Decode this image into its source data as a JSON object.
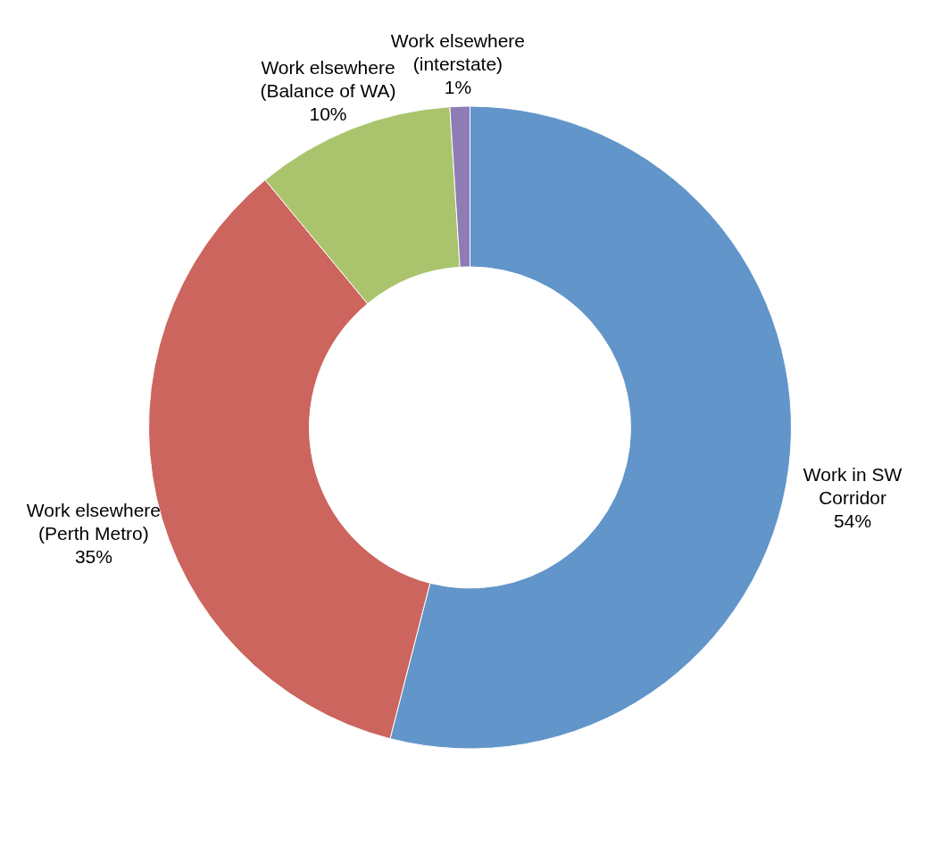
{
  "chart_data": {
    "type": "donut",
    "categories": [
      "Work in SW Corridor",
      "Work elsewhere (Perth Metro)",
      "Work elsewhere (Balance of WA)",
      "Work elsewhere (interstate)"
    ],
    "values": [
      54,
      35,
      10,
      1
    ],
    "value_labels": [
      "54%",
      "35%",
      "10%",
      "1%"
    ],
    "colors": [
      "#6295c9",
      "#cc655d",
      "#a9c46c",
      "#8e7cb5"
    ],
    "legend": false
  }
}
